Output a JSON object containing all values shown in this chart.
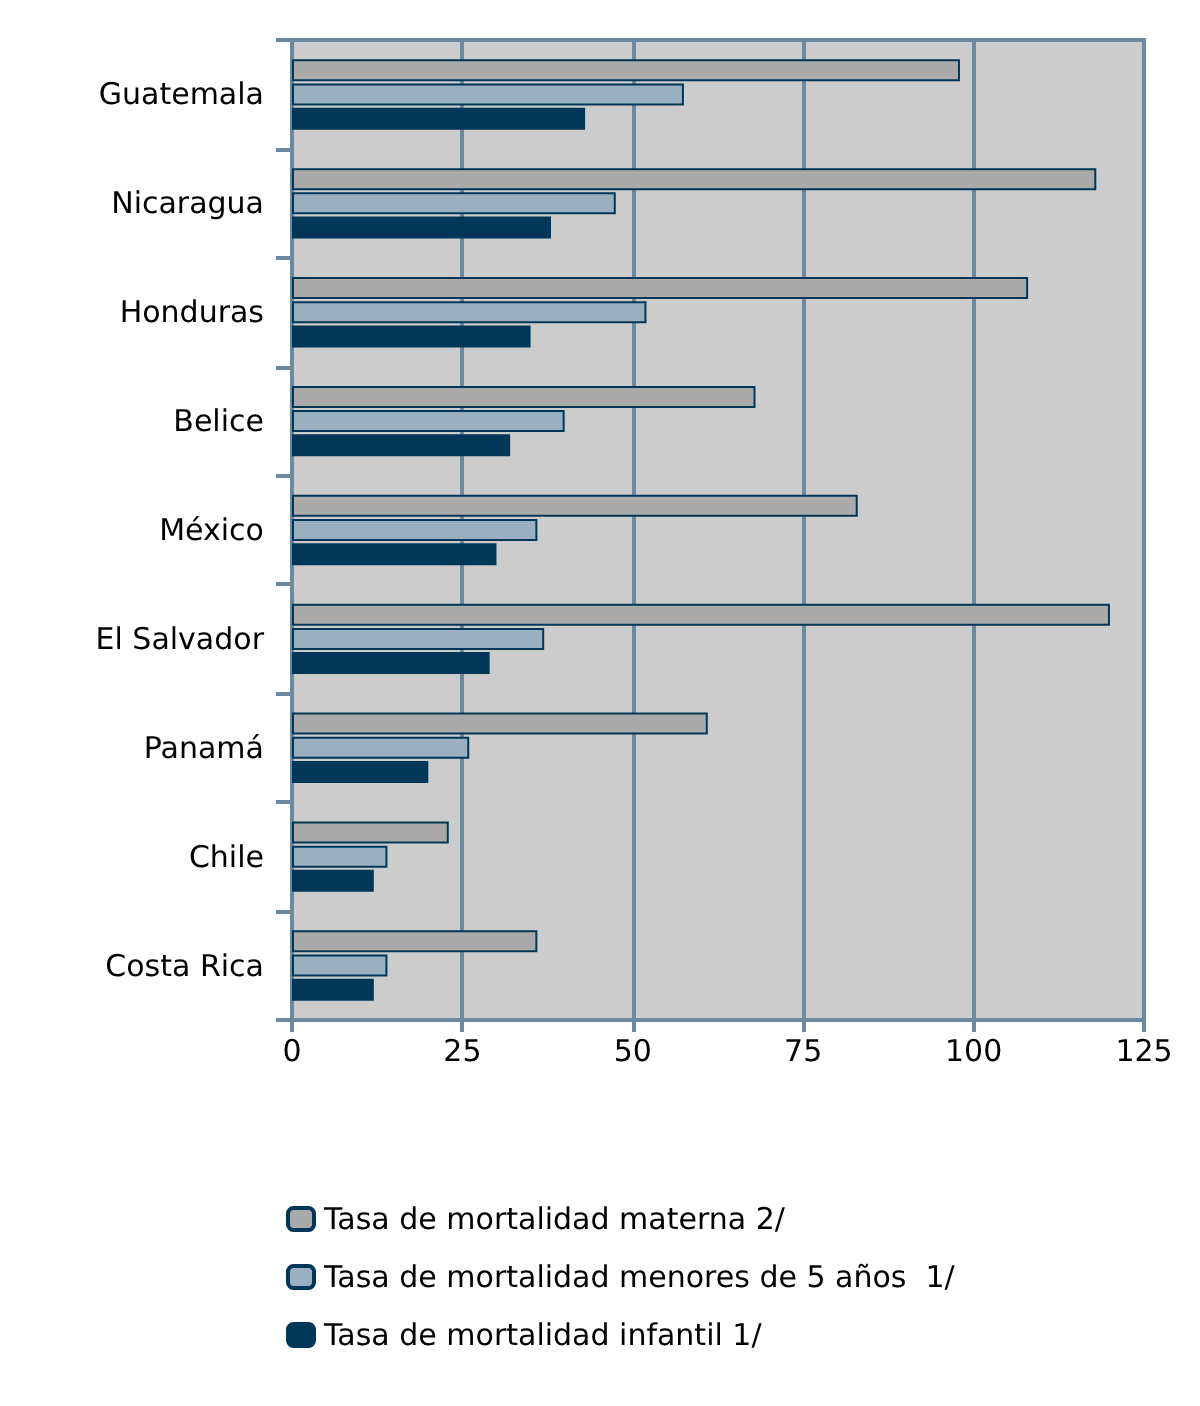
{
  "chart_data": {
    "type": "bar",
    "orientation": "horizontal",
    "categories": [
      "Guatemala",
      "Nicaragua",
      "Honduras",
      "Belice",
      "México",
      "El Salvador",
      "Panamá",
      "Chile",
      "Costa Rica"
    ],
    "series": [
      {
        "name": "Tasa de mortalidad materna 2/",
        "color": "#aaaaaa",
        "values": [
          98,
          118,
          108,
          68,
          83,
          120,
          61,
          23,
          36
        ]
      },
      {
        "name": "Tasa de mortalidad menores de 5 años  1/",
        "color": "#9ab0c0",
        "values": [
          57.5,
          47.5,
          52,
          40,
          36,
          37,
          26,
          14,
          14
        ]
      },
      {
        "name": "Tasa de mortalidad infantil 1/",
        "color": "#003657",
        "values": [
          43,
          38,
          35,
          32,
          30,
          29,
          20,
          12,
          12
        ]
      }
    ],
    "xlim": [
      0,
      125
    ],
    "xticks": [
      0,
      25,
      50,
      75,
      100,
      125
    ],
    "grid": "x",
    "legend": "bottom"
  }
}
